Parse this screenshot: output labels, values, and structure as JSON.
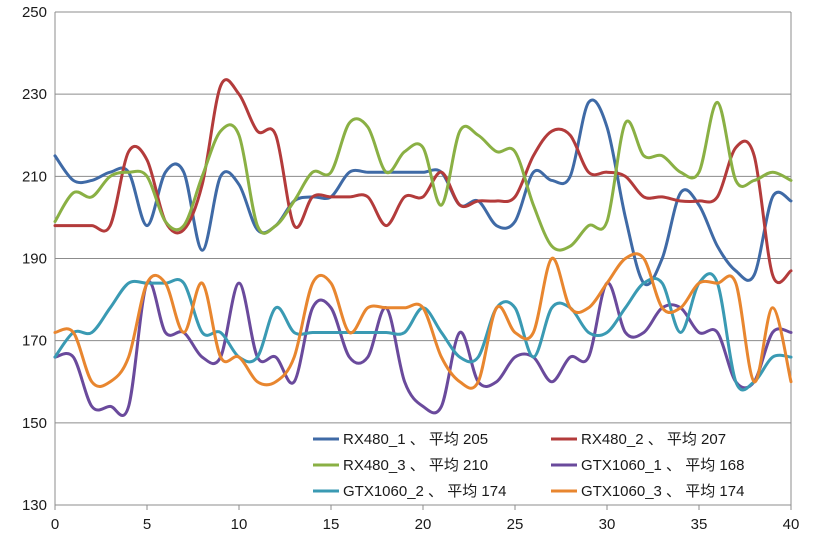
{
  "chart_data": {
    "type": "line",
    "xlim": [
      0,
      40
    ],
    "ylim": [
      130,
      250
    ],
    "x_ticks": [
      "0",
      "5",
      "10",
      "15",
      "20",
      "25",
      "30",
      "35",
      "40"
    ],
    "y_ticks": [
      "130",
      "150",
      "170",
      "190",
      "210",
      "230",
      "250"
    ],
    "grid": "horizontal",
    "legend_position": "bottom-right",
    "series": [
      {
        "name": "RX480_1 、 平均 205",
        "color": "#3f6aa6",
        "points": [
          [
            0,
            215
          ],
          [
            1,
            209
          ],
          [
            2,
            209
          ],
          [
            3,
            211
          ],
          [
            4,
            211
          ],
          [
            5,
            198
          ],
          [
            6,
            211
          ],
          [
            7,
            211
          ],
          [
            8,
            192
          ],
          [
            9,
            210
          ],
          [
            10,
            208
          ],
          [
            11,
            197
          ],
          [
            12,
            198
          ],
          [
            13,
            204
          ],
          [
            14,
            205
          ],
          [
            15,
            205
          ],
          [
            16,
            211
          ],
          [
            17,
            211
          ],
          [
            18,
            211
          ],
          [
            19,
            211
          ],
          [
            20,
            211
          ],
          [
            21,
            211
          ],
          [
            22,
            203
          ],
          [
            23,
            204
          ],
          [
            24,
            198
          ],
          [
            25,
            199
          ],
          [
            26,
            211
          ],
          [
            27,
            209
          ],
          [
            28,
            210
          ],
          [
            29,
            228
          ],
          [
            30,
            222
          ],
          [
            31,
            200
          ],
          [
            32,
            184
          ],
          [
            33,
            190
          ],
          [
            34,
            206
          ],
          [
            35,
            203
          ],
          [
            36,
            193
          ],
          [
            37,
            187
          ],
          [
            38,
            186
          ],
          [
            39,
            205
          ],
          [
            40,
            204
          ]
        ]
      },
      {
        "name": "RX480_2 、 平均 207",
        "color": "#b33b3b",
        "points": [
          [
            0,
            198
          ],
          [
            1,
            198
          ],
          [
            2,
            198
          ],
          [
            3,
            198
          ],
          [
            4,
            216
          ],
          [
            5,
            214
          ],
          [
            6,
            199
          ],
          [
            7,
            197
          ],
          [
            8,
            208
          ],
          [
            9,
            232
          ],
          [
            10,
            230
          ],
          [
            11,
            221
          ],
          [
            12,
            220
          ],
          [
            13,
            198
          ],
          [
            14,
            205
          ],
          [
            15,
            205
          ],
          [
            16,
            205
          ],
          [
            17,
            205
          ],
          [
            18,
            198
          ],
          [
            19,
            205
          ],
          [
            20,
            205
          ],
          [
            21,
            211
          ],
          [
            22,
            203
          ],
          [
            23,
            204
          ],
          [
            24,
            204
          ],
          [
            25,
            205
          ],
          [
            26,
            215
          ],
          [
            27,
            221
          ],
          [
            28,
            220
          ],
          [
            29,
            211
          ],
          [
            30,
            211
          ],
          [
            31,
            210
          ],
          [
            32,
            205
          ],
          [
            33,
            205
          ],
          [
            34,
            204
          ],
          [
            35,
            204
          ],
          [
            36,
            205
          ],
          [
            37,
            217
          ],
          [
            38,
            215
          ],
          [
            39,
            186
          ],
          [
            40,
            187
          ]
        ]
      },
      {
        "name": "RX480_3 、 平均 210",
        "color": "#8ab044",
        "points": [
          [
            0,
            199
          ],
          [
            1,
            206
          ],
          [
            2,
            205
          ],
          [
            3,
            210
          ],
          [
            4,
            211
          ],
          [
            5,
            210
          ],
          [
            6,
            199
          ],
          [
            7,
            198
          ],
          [
            8,
            210
          ],
          [
            9,
            221
          ],
          [
            10,
            220
          ],
          [
            11,
            198
          ],
          [
            12,
            198
          ],
          [
            13,
            204
          ],
          [
            14,
            211
          ],
          [
            15,
            211
          ],
          [
            16,
            223
          ],
          [
            17,
            222
          ],
          [
            18,
            211
          ],
          [
            19,
            216
          ],
          [
            20,
            217
          ],
          [
            21,
            203
          ],
          [
            22,
            221
          ],
          [
            23,
            220
          ],
          [
            24,
            216
          ],
          [
            25,
            216
          ],
          [
            26,
            203
          ],
          [
            27,
            193
          ],
          [
            28,
            193
          ],
          [
            29,
            198
          ],
          [
            30,
            199
          ],
          [
            31,
            223
          ],
          [
            32,
            215
          ],
          [
            33,
            215
          ],
          [
            34,
            211
          ],
          [
            35,
            211
          ],
          [
            36,
            228
          ],
          [
            37,
            209
          ],
          [
            38,
            209
          ],
          [
            39,
            211
          ],
          [
            40,
            209
          ]
        ]
      },
      {
        "name": "GTX1060_1 、 平均 168",
        "color": "#6a4a9c",
        "points": [
          [
            0,
            166
          ],
          [
            1,
            166
          ],
          [
            2,
            154
          ],
          [
            3,
            154
          ],
          [
            4,
            154
          ],
          [
            5,
            184
          ],
          [
            6,
            172
          ],
          [
            7,
            172
          ],
          [
            8,
            166
          ],
          [
            9,
            166
          ],
          [
            10,
            184
          ],
          [
            11,
            166
          ],
          [
            12,
            166
          ],
          [
            13,
            160
          ],
          [
            14,
            178
          ],
          [
            15,
            178
          ],
          [
            16,
            166
          ],
          [
            17,
            166
          ],
          [
            18,
            178
          ],
          [
            19,
            160
          ],
          [
            20,
            154
          ],
          [
            21,
            154
          ],
          [
            22,
            172
          ],
          [
            23,
            160
          ],
          [
            24,
            160
          ],
          [
            25,
            166
          ],
          [
            26,
            166
          ],
          [
            27,
            160
          ],
          [
            28,
            166
          ],
          [
            29,
            166
          ],
          [
            30,
            184
          ],
          [
            31,
            172
          ],
          [
            32,
            172
          ],
          [
            33,
            178
          ],
          [
            34,
            178
          ],
          [
            35,
            172
          ],
          [
            36,
            172
          ],
          [
            37,
            160
          ],
          [
            38,
            160
          ],
          [
            39,
            172
          ],
          [
            40,
            172
          ]
        ]
      },
      {
        "name": "GTX1060_2 、 平均 174",
        "color": "#3a9ab3",
        "points": [
          [
            0,
            166
          ],
          [
            1,
            172
          ],
          [
            2,
            172
          ],
          [
            3,
            178
          ],
          [
            4,
            184
          ],
          [
            5,
            184
          ],
          [
            6,
            184
          ],
          [
            7,
            184
          ],
          [
            8,
            172
          ],
          [
            9,
            172
          ],
          [
            10,
            166
          ],
          [
            11,
            166
          ],
          [
            12,
            178
          ],
          [
            13,
            172
          ],
          [
            14,
            172
          ],
          [
            15,
            172
          ],
          [
            16,
            172
          ],
          [
            17,
            172
          ],
          [
            18,
            172
          ],
          [
            19,
            172
          ],
          [
            20,
            178
          ],
          [
            21,
            172
          ],
          [
            22,
            166
          ],
          [
            23,
            166
          ],
          [
            24,
            178
          ],
          [
            25,
            178
          ],
          [
            26,
            166
          ],
          [
            27,
            178
          ],
          [
            28,
            178
          ],
          [
            29,
            172
          ],
          [
            30,
            172
          ],
          [
            31,
            178
          ],
          [
            32,
            184
          ],
          [
            33,
            184
          ],
          [
            34,
            172
          ],
          [
            35,
            184
          ],
          [
            36,
            184
          ],
          [
            37,
            160
          ],
          [
            38,
            160
          ],
          [
            39,
            166
          ],
          [
            40,
            166
          ]
        ]
      },
      {
        "name": "GTX1060_3 、 平均 174",
        "color": "#e8862f",
        "points": [
          [
            0,
            172
          ],
          [
            1,
            172
          ],
          [
            2,
            160
          ],
          [
            3,
            160
          ],
          [
            4,
            166
          ],
          [
            5,
            184
          ],
          [
            6,
            184
          ],
          [
            7,
            172
          ],
          [
            8,
            184
          ],
          [
            9,
            166
          ],
          [
            10,
            166
          ],
          [
            11,
            160
          ],
          [
            12,
            160
          ],
          [
            13,
            166
          ],
          [
            14,
            184
          ],
          [
            15,
            184
          ],
          [
            16,
            172
          ],
          [
            17,
            178
          ],
          [
            18,
            178
          ],
          [
            19,
            178
          ],
          [
            20,
            178
          ],
          [
            21,
            166
          ],
          [
            22,
            160
          ],
          [
            23,
            160
          ],
          [
            24,
            178
          ],
          [
            25,
            172
          ],
          [
            26,
            172
          ],
          [
            27,
            190
          ],
          [
            28,
            178
          ],
          [
            29,
            178
          ],
          [
            30,
            184
          ],
          [
            31,
            190
          ],
          [
            32,
            190
          ],
          [
            33,
            178
          ],
          [
            34,
            178
          ],
          [
            35,
            184
          ],
          [
            36,
            184
          ],
          [
            37,
            184
          ],
          [
            38,
            160
          ],
          [
            39,
            178
          ],
          [
            40,
            160
          ]
        ]
      }
    ]
  }
}
